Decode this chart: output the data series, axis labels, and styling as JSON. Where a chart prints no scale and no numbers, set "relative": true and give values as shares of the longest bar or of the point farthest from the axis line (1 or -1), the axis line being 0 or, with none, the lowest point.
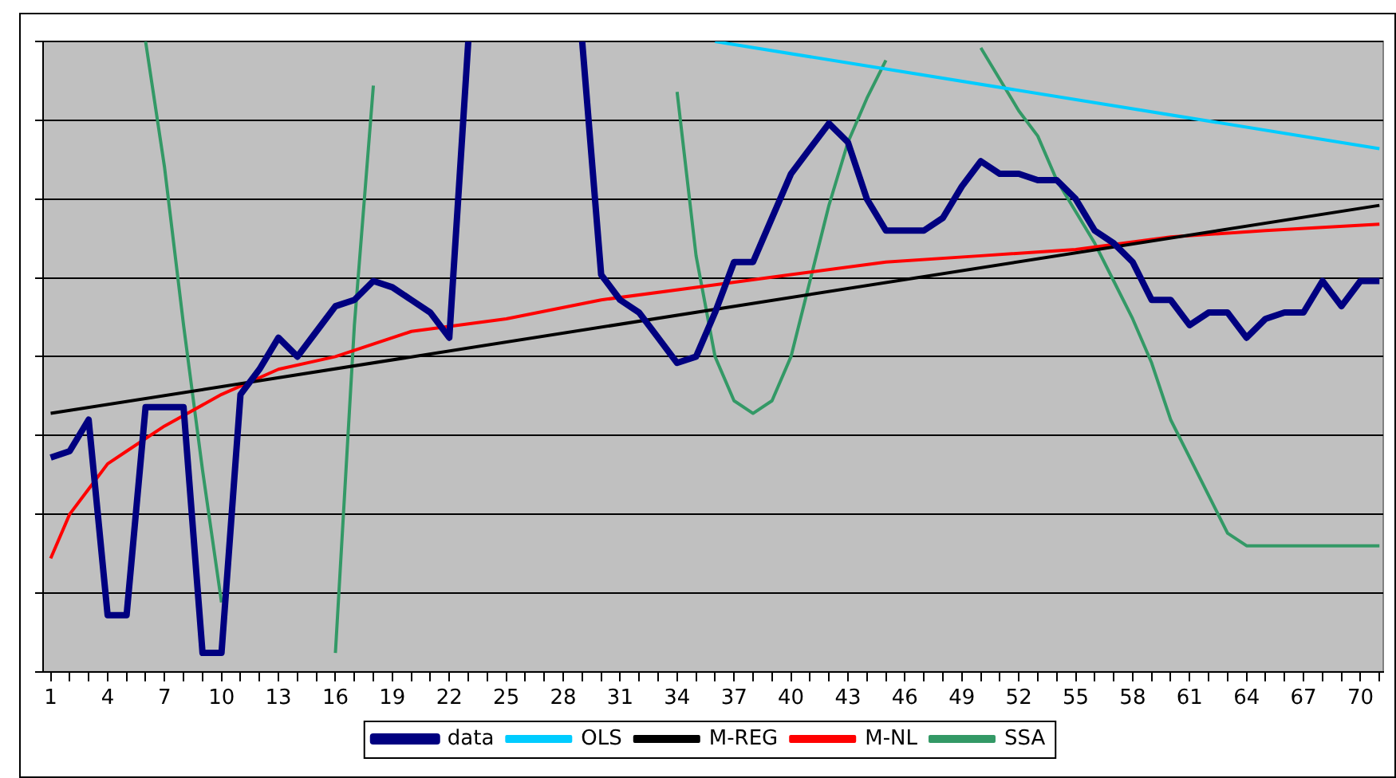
{
  "chart_data": {
    "type": "line",
    "relative": true,
    "grid": "y",
    "legend": "bottom",
    "marker": "none",
    "line_style": "solid",
    "x": [
      1,
      2,
      3,
      4,
      5,
      6,
      7,
      8,
      9,
      10,
      11,
      12,
      13,
      14,
      15,
      16,
      17,
      18,
      19,
      20,
      21,
      22,
      23,
      24,
      25,
      26,
      27,
      28,
      29,
      30,
      31,
      32,
      33,
      34,
      35,
      36,
      37,
      38,
      39,
      40,
      41,
      42,
      43,
      44,
      45,
      46,
      47,
      48,
      49,
      50,
      51,
      52,
      53,
      54,
      55,
      56,
      57,
      58,
      59,
      60,
      61,
      62,
      63,
      64,
      65,
      66,
      67,
      68,
      69,
      70,
      71
    ],
    "xlim": [
      0.6,
      71.2
    ],
    "xticks": [
      1,
      {
        "value": 2,
        "label": null
      },
      {
        "value": 3,
        "label": null
      },
      4,
      {
        "value": 5,
        "label": null
      },
      {
        "value": 6,
        "label": null
      },
      7,
      {
        "value": 8,
        "label": null
      },
      {
        "value": 9,
        "label": null
      },
      10,
      {
        "value": 11,
        "label": null
      },
      {
        "value": 12,
        "label": null
      },
      13,
      {
        "value": 14,
        "label": null
      },
      {
        "value": 15,
        "label": null
      },
      16,
      {
        "value": 17,
        "label": null
      },
      {
        "value": 18,
        "label": null
      },
      19,
      {
        "value": 20,
        "label": null
      },
      {
        "value": 21,
        "label": null
      },
      22,
      {
        "value": 23,
        "label": null
      },
      {
        "value": 24,
        "label": null
      },
      25,
      {
        "value": 26,
        "label": null
      },
      {
        "value": 27,
        "label": null
      },
      28,
      {
        "value": 29,
        "label": null
      },
      {
        "value": 30,
        "label": null
      },
      31,
      {
        "value": 32,
        "label": null
      },
      {
        "value": 33,
        "label": null
      },
      34,
      {
        "value": 35,
        "label": null
      },
      {
        "value": 36,
        "label": null
      },
      37,
      {
        "value": 38,
        "label": null
      },
      {
        "value": 39,
        "label": null
      },
      40,
      {
        "value": 41,
        "label": null
      },
      {
        "value": 42,
        "label": null
      },
      43,
      {
        "value": 44,
        "label": null
      },
      {
        "value": 45,
        "label": null
      },
      46,
      {
        "value": 47,
        "label": null
      },
      {
        "value": 48,
        "label": null
      },
      49,
      {
        "value": 50,
        "label": null
      },
      {
        "value": 51,
        "label": null
      },
      52,
      {
        "value": 53,
        "label": null
      },
      {
        "value": 54,
        "label": null
      },
      55,
      {
        "value": 56,
        "label": null
      },
      {
        "value": 57,
        "label": null
      },
      58,
      {
        "value": 59,
        "label": null
      },
      {
        "value": 60,
        "label": null
      },
      61,
      {
        "value": 62,
        "label": null
      },
      {
        "value": 63,
        "label": null
      },
      64,
      {
        "value": 65,
        "label": null
      },
      {
        "value": 66,
        "label": null
      },
      67,
      {
        "value": 68,
        "label": null
      },
      {
        "value": 69,
        "label": null
      },
      70,
      {
        "value": 71,
        "label": null
      }
    ],
    "series": [
      {
        "name": "data",
        "color": "#000080",
        "values": [
          0.34,
          0.35,
          0.4,
          0.09,
          0.09,
          0.42,
          0.42,
          0.42,
          0.03,
          0.03,
          0.44,
          0.48,
          0.53,
          0.5,
          0.54,
          0.58,
          0.59,
          0.62,
          0.61,
          0.59,
          0.57,
          0.53,
          1,
          null,
          null,
          null,
          null,
          null,
          1,
          0.63,
          0.59,
          0.57,
          0.53,
          0.49,
          0.5,
          0.57,
          0.65,
          0.65,
          0.72,
          0.79,
          0.83,
          0.87,
          0.84,
          0.75,
          0.7,
          0.7,
          0.7,
          0.72,
          0.77,
          0.81,
          0.79,
          0.79,
          0.78,
          0.78,
          0.75,
          0.7,
          0.68,
          0.65,
          0.59,
          0.59,
          0.55,
          0.57,
          0.57,
          0.53,
          0.56,
          0.57,
          0.57,
          0.62,
          0.58,
          0.62,
          0.62
        ]
      },
      {
        "name": "OLS",
        "color": "#00ccff",
        "x": [
          36,
          71
        ],
        "values": [
          1,
          0.83
        ]
      },
      {
        "name": "M-REG",
        "color": "#000000",
        "x": [
          1,
          71
        ],
        "values": [
          0.41,
          0.74
        ]
      },
      {
        "name": "M-NL",
        "color": "#ff0000",
        "x": [
          1,
          2,
          3,
          4,
          5,
          7,
          10,
          13,
          16,
          20,
          25,
          30,
          35,
          40,
          45,
          50,
          55,
          60,
          65,
          71
        ],
        "values": [
          0.18,
          0.25,
          0.29,
          0.33,
          0.35,
          0.39,
          0.44,
          0.48,
          0.5,
          0.54,
          0.56,
          0.59,
          0.61,
          0.63,
          0.65,
          0.66,
          0.67,
          0.69,
          0.7,
          0.71
        ]
      },
      {
        "name": "SSA",
        "color": "#339966",
        "values": [
          null,
          null,
          null,
          null,
          null,
          1,
          0.8,
          0.55,
          0.32,
          0.11,
          null,
          null,
          null,
          null,
          null,
          0.03,
          0.55,
          0.93,
          null,
          null,
          null,
          null,
          null,
          null,
          null,
          null,
          null,
          null,
          null,
          null,
          null,
          null,
          null,
          0.92,
          0.66,
          0.5,
          0.43,
          0.41,
          0.43,
          0.5,
          0.62,
          0.74,
          0.84,
          0.91,
          0.97,
          null,
          null,
          null,
          null,
          0.99,
          0.94,
          0.89,
          0.85,
          0.78,
          0.73,
          0.68,
          0.62,
          0.56,
          0.49,
          0.4,
          0.34,
          0.28,
          0.22,
          0.2,
          0.2,
          0.2,
          0.2,
          0.2,
          0.2,
          0.2,
          0.2
        ]
      }
    ]
  }
}
